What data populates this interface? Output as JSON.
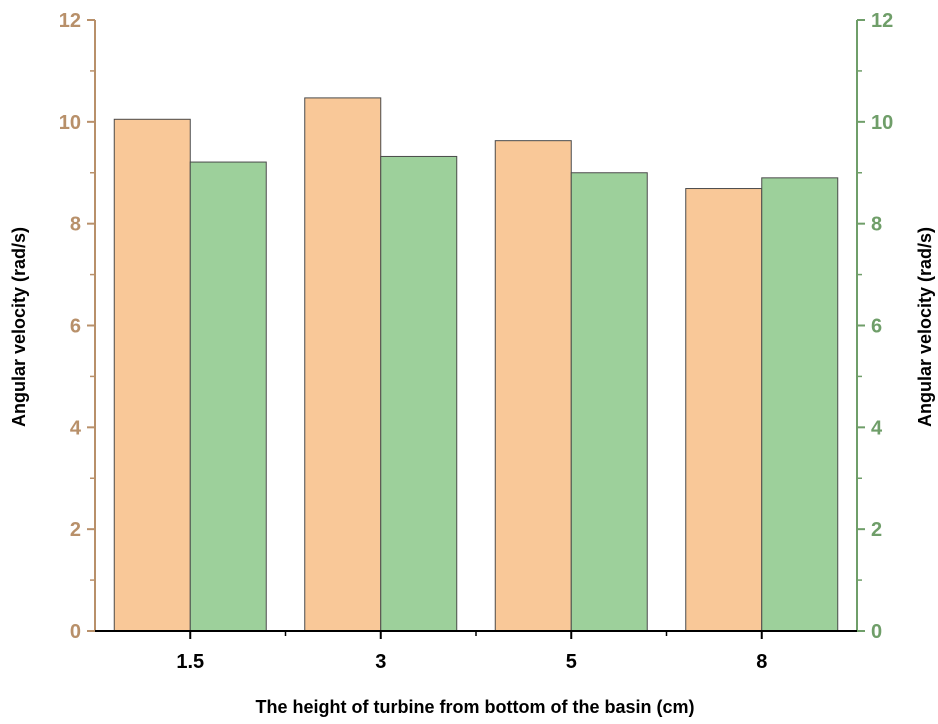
{
  "chart_data": {
    "type": "bar",
    "xlabel": "The height of turbine from bottom of the basin (cm)",
    "ylabel_left": "Angular velocity (rad/s)",
    "ylabel_right": "Angular velocity (rad/s)",
    "categories": [
      "1.5",
      "3",
      "5",
      "8"
    ],
    "series": [
      {
        "values": [
          10.05,
          10.47,
          9.63,
          8.69
        ],
        "color": "#f9c898",
        "axis": "left"
      },
      {
        "values": [
          9.21,
          9.32,
          9.0,
          8.9
        ],
        "color": "#9dd09b",
        "axis": "right"
      }
    ],
    "ylim": [
      0,
      12
    ],
    "yticks": [
      0,
      2,
      4,
      6,
      8,
      10,
      12
    ],
    "left_axis_color": "#b8906a",
    "right_axis_color": "#6f9e69",
    "grid": false,
    "legend": "none"
  }
}
